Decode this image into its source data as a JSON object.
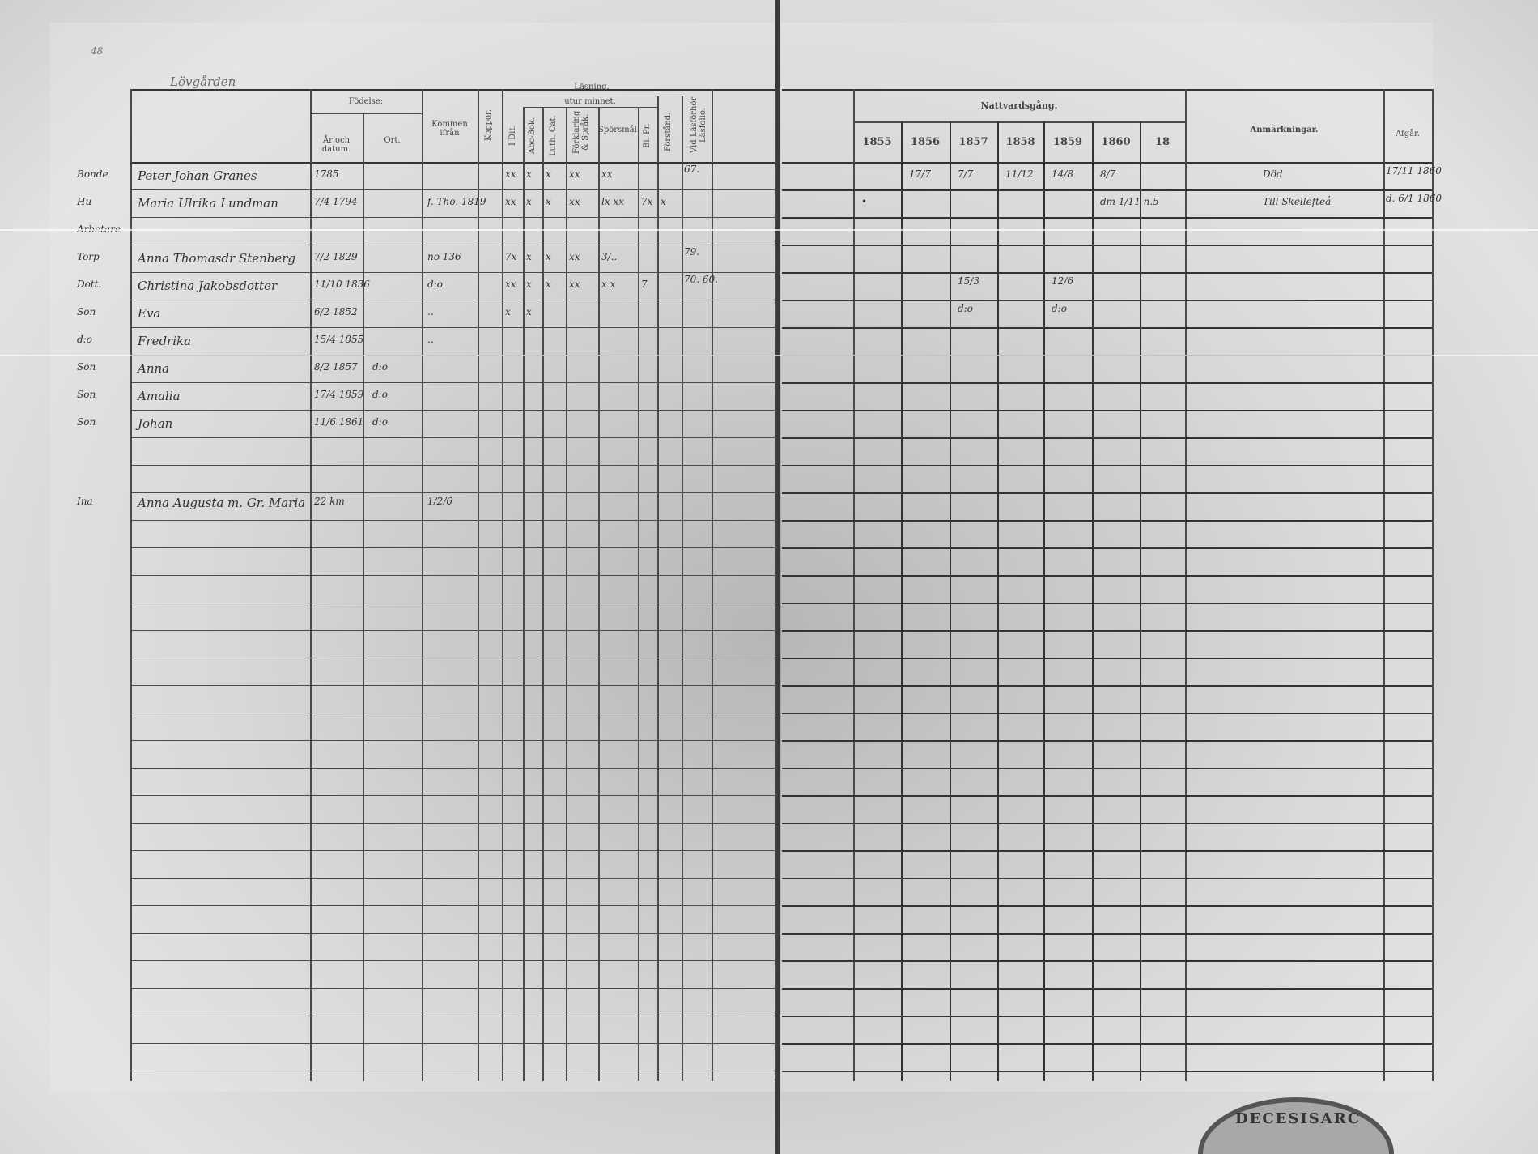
{
  "left_page": {
    "page_number": "48",
    "farm_name": "Lövgården",
    "headers": {
      "fodelse": "Födelse:",
      "ar_datum": "År och datum.",
      "ort": "Ort.",
      "kommen_ifran": "Kommen ifrån",
      "koppor": "Koppor.",
      "lasning": "Läsning.",
      "utur_minnet": "utur minnet.",
      "i_dit": "I Dit.",
      "abc_bok": "Abc-Bok.",
      "luth_cat": "Luth. Cat.",
      "forklaring": "Förklaring & Språk.",
      "sporsmal": "Spörsmål.",
      "bi_pr": "Bi. Pr.",
      "forstand": "Förstånd.",
      "lasforhor": "Vid Läsförhör Läsfolio."
    },
    "rows": [
      {
        "title": "Bonde",
        "name": "Peter Johan Granes",
        "birth": "1785",
        "from": "",
        "marks": [
          "xx",
          "x",
          "x",
          "xx",
          "xx"
        ],
        "folio": "67."
      },
      {
        "title": "Hu",
        "name": "Maria Ulrika Lundman",
        "birth": "7/4 1794",
        "from": "f. Tho. 1819",
        "marks": [
          "xx",
          "x",
          "x",
          "xx",
          "lx xx",
          "7x",
          "x"
        ],
        "folio": ""
      },
      {
        "title": "Arbetare",
        "name": "",
        "birth": "",
        "from": "",
        "marks": [],
        "folio": ""
      },
      {
        "title": "Torp",
        "name": "Anna Thomasdr Stenberg",
        "birth": "7/2 1829",
        "from": "no 136",
        "marks": [
          "7x",
          "x",
          "x",
          "xx",
          "3/.."
        ],
        "folio": "79."
      },
      {
        "title": "Dott.",
        "name": "Christina Jakobsdotter",
        "birth": "11/10 1836",
        "from": "d:o",
        "marks": [
          "xx",
          "x",
          "x",
          "xx",
          "x x",
          "7"
        ],
        "folio": "70. 60."
      },
      {
        "title": "Son",
        "name": "Eva",
        "birth": "6/2 1852",
        "from": "..",
        "marks": [
          "x",
          "x"
        ],
        "folio": ""
      },
      {
        "title": "d:o",
        "name": "Fredrika",
        "birth": "15/4 1855",
        "from": "..",
        "marks": [],
        "folio": ""
      },
      {
        "title": "Son",
        "name": "Anna",
        "birth": "8/2 1857",
        "from": "",
        "place": "d:o",
        "marks": [],
        "folio": ""
      },
      {
        "title": "Son",
        "name": "Amalia",
        "birth": "17/4 1859",
        "from": "",
        "place": "d:o",
        "marks": [],
        "folio": ""
      },
      {
        "title": "Son",
        "name": "Johan",
        "birth": "11/6 1861",
        "from": "",
        "place": "d:o",
        "marks": [],
        "folio": ""
      },
      {
        "title": "",
        "name": "",
        "birth": "",
        "from": "",
        "marks": [],
        "folio": ""
      },
      {
        "title": "Ina",
        "name": "Anna Augusta m. Gr. Maria",
        "birth": "22 km",
        "from": "1/2/6",
        "marks": [],
        "folio": ""
      }
    ]
  },
  "right_page": {
    "headers": {
      "nattvardsgang": "Nattvardsgång.",
      "anmarkningar": "Anmärkningar.",
      "afgar": "Afgår."
    },
    "years": [
      "1855",
      "1856",
      "1857",
      "1858",
      "1859",
      "1860",
      "18"
    ],
    "rows": [
      {
        "communion": [
          "",
          "17/7",
          "7/7",
          "11/12",
          "14/8",
          "8/7",
          ""
        ],
        "remark": "Död",
        "afgar": "17/11 1860"
      },
      {
        "communion": [
          "•",
          "",
          "",
          "",
          "",
          "dm 1/11 n.5",
          ""
        ],
        "remark": "Till Skellefteå",
        "afgar": "d. 6/1 1860"
      },
      {
        "communion": [
          "",
          "",
          "",
          "",
          "",
          "",
          ""
        ],
        "remark": "",
        "afgar": ""
      },
      {
        "communion": [
          "",
          "",
          "15/3",
          "",
          "12/6",
          "",
          ""
        ],
        "remark": "",
        "afgar": ""
      },
      {
        "communion": [
          "",
          "",
          "d:o",
          "",
          "d:o",
          "",
          ""
        ],
        "remark": "",
        "afgar": ""
      }
    ]
  },
  "stamp": {
    "text": "DECESISARC"
  },
  "colors": {
    "paper": "#d8d8d8",
    "ink": "#333333",
    "rule": "#4a4a4a"
  }
}
